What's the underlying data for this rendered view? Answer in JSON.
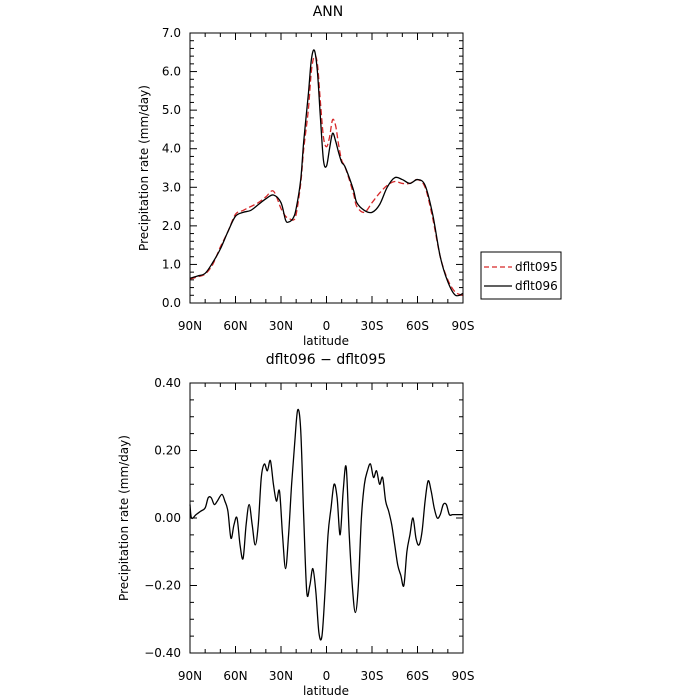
{
  "chart_data": [
    {
      "type": "line",
      "title": "ANN",
      "xlabel": "latitude",
      "ylabel": "Precipitation rate (mm/day)",
      "xlim": [
        90,
        -90
      ],
      "ylim": [
        0.0,
        7.0
      ],
      "x_ticks": [
        90,
        60,
        30,
        0,
        -30,
        -60,
        -90
      ],
      "x_tick_labels": [
        "90N",
        "60N",
        "30N",
        "0",
        "30S",
        "60S",
        "90S"
      ],
      "y_ticks": [
        0,
        1,
        2,
        3,
        4,
        5,
        6,
        7
      ],
      "y_tick_labels": [
        "0.0",
        "1.0",
        "2.0",
        "3.0",
        "4.0",
        "5.0",
        "6.0",
        "7.0"
      ],
      "legend_position": "right",
      "series": [
        {
          "name": "dflt095",
          "color": "#d62728",
          "dash": "dashed",
          "x": [
            90,
            85,
            80,
            75,
            70,
            65,
            60,
            55,
            50,
            45,
            40,
            35,
            30,
            27,
            25,
            22,
            20,
            17,
            15,
            12,
            10,
            8,
            6,
            4,
            2,
            0,
            -2,
            -4,
            -6,
            -8,
            -10,
            -12,
            -15,
            -18,
            -20,
            -25,
            -30,
            -35,
            -40,
            -45,
            -50,
            -55,
            -60,
            -65,
            -70,
            -75,
            -80,
            -85,
            -90
          ],
          "y": [
            0.62,
            0.68,
            0.75,
            1.0,
            1.45,
            1.85,
            2.3,
            2.4,
            2.5,
            2.6,
            2.75,
            2.9,
            2.45,
            2.25,
            2.2,
            2.15,
            2.3,
            3.1,
            4.0,
            5.0,
            6.0,
            6.4,
            6.2,
            5.2,
            4.3,
            4.05,
            4.3,
            4.75,
            4.6,
            4.1,
            3.7,
            3.55,
            3.2,
            2.8,
            2.5,
            2.35,
            2.6,
            2.85,
            3.05,
            3.15,
            3.1,
            3.1,
            3.2,
            3.0,
            2.2,
            1.2,
            0.6,
            0.28,
            0.2
          ]
        },
        {
          "name": "dflt096",
          "color": "#000000",
          "dash": "solid",
          "x": [
            90,
            85,
            80,
            75,
            70,
            65,
            60,
            55,
            50,
            45,
            40,
            35,
            30,
            27,
            25,
            22,
            20,
            17,
            15,
            12,
            10,
            8,
            6,
            4,
            2,
            0,
            -2,
            -4,
            -6,
            -8,
            -10,
            -12,
            -15,
            -18,
            -20,
            -25,
            -30,
            -35,
            -40,
            -45,
            -50,
            -55,
            -60,
            -65,
            -70,
            -75,
            -80,
            -85,
            -90
          ],
          "y": [
            0.64,
            0.7,
            0.77,
            1.05,
            1.4,
            1.85,
            2.25,
            2.35,
            2.4,
            2.55,
            2.7,
            2.8,
            2.6,
            2.15,
            2.1,
            2.2,
            2.45,
            3.2,
            4.2,
            5.4,
            6.3,
            6.55,
            6.0,
            4.8,
            3.7,
            3.55,
            4.0,
            4.4,
            4.2,
            3.9,
            3.65,
            3.55,
            3.25,
            2.9,
            2.6,
            2.4,
            2.35,
            2.55,
            3.0,
            3.25,
            3.2,
            3.1,
            3.2,
            3.05,
            2.3,
            1.2,
            0.55,
            0.2,
            0.25
          ]
        }
      ]
    },
    {
      "type": "line",
      "title": "dflt096 − dflt095",
      "xlabel": "latitude",
      "ylabel": "Precipitation rate (mm/day)",
      "xlim": [
        90,
        -90
      ],
      "ylim": [
        -0.4,
        0.4
      ],
      "x_ticks": [
        90,
        60,
        30,
        0,
        -30,
        -60,
        -90
      ],
      "x_tick_labels": [
        "90N",
        "60N",
        "30N",
        "0",
        "30S",
        "60S",
        "90S"
      ],
      "y_ticks": [
        -0.4,
        -0.2,
        0.0,
        0.2,
        0.4
      ],
      "y_tick_labels": [
        "−0.40",
        "−0.20",
        "0.00",
        "0.20",
        "0.40"
      ],
      "series": [
        {
          "color": "#000000",
          "dash": "solid",
          "x": [
            90,
            89,
            86,
            83,
            80,
            78,
            76,
            74,
            72,
            69,
            67,
            65,
            63,
            61,
            59,
            57,
            55,
            53,
            51,
            49,
            47,
            45,
            43,
            41,
            39,
            37,
            35,
            33,
            31,
            29,
            27,
            25,
            23,
            21,
            19,
            17,
            15,
            13,
            11,
            9,
            7,
            5,
            3,
            1,
            -1,
            -3,
            -5,
            -7,
            -9,
            -11,
            -13,
            -15,
            -17,
            -19,
            -21,
            -23,
            -25,
            -27,
            -29,
            -31,
            -33,
            -35,
            -37,
            -39,
            -41,
            -43,
            -45,
            -47,
            -49,
            -51,
            -53,
            -55,
            -57,
            -59,
            -61,
            -63,
            -65,
            -67,
            -69,
            -71,
            -73,
            -75,
            -77,
            -79,
            -81,
            -83,
            -85,
            -87,
            -90
          ],
          "y": [
            0.04,
            0.0,
            0.01,
            0.02,
            0.03,
            0.06,
            0.06,
            0.04,
            0.05,
            0.07,
            0.05,
            0.02,
            -0.06,
            -0.02,
            0.0,
            -0.08,
            -0.12,
            -0.02,
            0.04,
            -0.02,
            -0.08,
            -0.02,
            0.12,
            0.16,
            0.14,
            0.17,
            0.1,
            0.05,
            0.08,
            -0.05,
            -0.15,
            -0.05,
            0.1,
            0.22,
            0.32,
            0.26,
            0.0,
            -0.22,
            -0.2,
            -0.15,
            -0.22,
            -0.34,
            -0.35,
            -0.22,
            -0.05,
            0.03,
            0.1,
            0.06,
            -0.05,
            0.08,
            0.15,
            -0.05,
            -0.2,
            -0.28,
            -0.2,
            0.0,
            0.1,
            0.14,
            0.16,
            0.12,
            0.14,
            0.1,
            0.12,
            0.05,
            0.02,
            -0.02,
            -0.08,
            -0.14,
            -0.17,
            -0.2,
            -0.1,
            -0.05,
            0.0,
            -0.06,
            -0.08,
            -0.04,
            0.05,
            0.11,
            0.08,
            0.03,
            0.0,
            0.01,
            0.04,
            0.04,
            0.01,
            0.01,
            0.01,
            0.01,
            0.01
          ]
        }
      ]
    }
  ]
}
